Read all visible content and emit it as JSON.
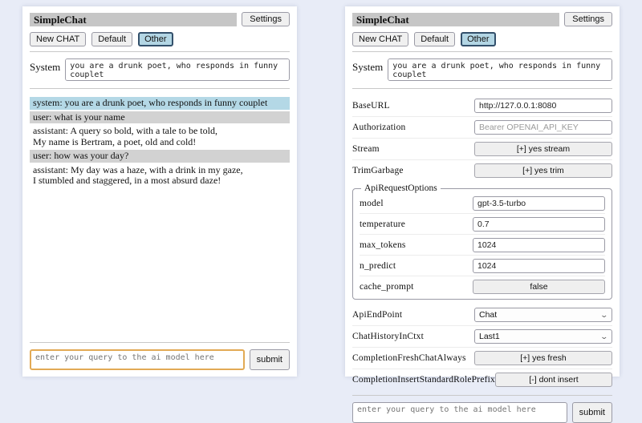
{
  "app": {
    "title": "SimpleChat",
    "settings_button": "Settings",
    "session_buttons": [
      "New CHAT",
      "Default",
      "Other"
    ],
    "active_session": "Other",
    "system_label": "System",
    "system_prompt": "you are a drunk poet, who responds in funny couplet",
    "query_placeholder": "enter your query to the ai model here",
    "submit_label": "submit"
  },
  "chat": {
    "messages": [
      {
        "role": "system",
        "text": "system: you are a drunk poet, who responds in funny couplet"
      },
      {
        "role": "user",
        "text": "user: what is your name"
      },
      {
        "role": "assistant",
        "text": "assistant: A query so bold, with a tale to be told,\nMy name is Bertram, a poet, old and cold!"
      },
      {
        "role": "user",
        "text": "user: how was your day?"
      },
      {
        "role": "assistant",
        "text": "assistant: My day was a haze, with a drink in my gaze,\nI stumbled and staggered, in a most absurd daze!"
      }
    ]
  },
  "settings": {
    "rows_top": [
      {
        "label": "BaseURL",
        "type": "input",
        "value": "http://127.0.0.1:8080"
      },
      {
        "label": "Authorization",
        "type": "input",
        "placeholder": "Bearer OPENAI_API_KEY"
      },
      {
        "label": "Stream",
        "type": "button",
        "value": "[+] yes stream"
      },
      {
        "label": "TrimGarbage",
        "type": "button",
        "value": "[+] yes trim"
      }
    ],
    "fieldset": {
      "legend": "ApiRequestOptions",
      "rows": [
        {
          "label": "model",
          "type": "input",
          "value": "gpt-3.5-turbo"
        },
        {
          "label": "temperature",
          "type": "input",
          "value": "0.7"
        },
        {
          "label": "max_tokens",
          "type": "input",
          "value": "1024"
        },
        {
          "label": "n_predict",
          "type": "input",
          "value": "1024"
        },
        {
          "label": "cache_prompt",
          "type": "button",
          "value": "false"
        }
      ]
    },
    "rows_bottom": [
      {
        "label": "ApiEndPoint",
        "type": "select",
        "value": "Chat"
      },
      {
        "label": "ChatHistoryInCtxt",
        "type": "select",
        "value": "Last1"
      },
      {
        "label": "CompletionFreshChatAlways",
        "type": "button",
        "value": "[+] yes fresh"
      },
      {
        "label": "CompletionInsertStandardRolePrefix",
        "type": "button",
        "value": "[-] dont insert"
      }
    ]
  },
  "colors": {
    "page_background": "#e8ecf7",
    "panel_background": "#ffffff",
    "title_bar": "#c6c6c6",
    "active_session_background": "#b3d6e4",
    "active_session_border": "#33506b",
    "role_system_background": "#b4d8e6",
    "role_user_background": "#d2d2d2",
    "focused_input_border": "#e2aa55"
  }
}
